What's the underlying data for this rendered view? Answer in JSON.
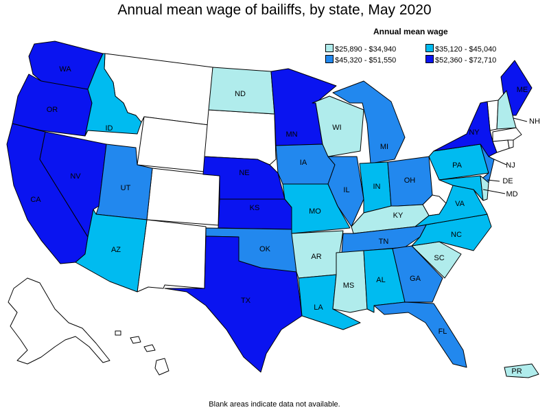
{
  "title": "Annual mean wage of bailiffs, by state, May 2020",
  "legend": {
    "title": "Annual mean wage",
    "items": [
      {
        "label": "$25,890 - $34,940",
        "color": "#b0ecec"
      },
      {
        "label": "$35,120 - $45,040",
        "color": "#00bbf0"
      },
      {
        "label": "$45,320 - $51,550",
        "color": "#2288ee"
      },
      {
        "label": "$52,360 - $72,710",
        "color": "#0a14f0"
      }
    ]
  },
  "footnote": "Blank areas indicate data not available.",
  "states": {
    "WA": {
      "label": "WA",
      "tier": 3
    },
    "OR": {
      "label": "OR",
      "tier": 3
    },
    "CA": {
      "label": "CA",
      "tier": 3
    },
    "NV": {
      "label": "NV",
      "tier": 3
    },
    "ID": {
      "label": "ID",
      "tier": 1
    },
    "UT": {
      "label": "UT",
      "tier": 2
    },
    "AZ": {
      "label": "AZ",
      "tier": 1
    },
    "ND": {
      "label": "ND",
      "tier": 0
    },
    "NE": {
      "label": "NE",
      "tier": 3
    },
    "KS": {
      "label": "KS",
      "tier": 3
    },
    "OK": {
      "label": "OK",
      "tier": 2
    },
    "TX": {
      "label": "TX",
      "tier": 3
    },
    "MN": {
      "label": "MN",
      "tier": 3
    },
    "IA": {
      "label": "IA",
      "tier": 2
    },
    "MO": {
      "label": "MO",
      "tier": 1
    },
    "AR": {
      "label": "AR",
      "tier": 0
    },
    "LA": {
      "label": "LA",
      "tier": 1
    },
    "WI": {
      "label": "WI",
      "tier": 0
    },
    "IL": {
      "label": "IL",
      "tier": 2
    },
    "MI": {
      "label": "MI",
      "tier": 2
    },
    "IN": {
      "label": "IN",
      "tier": 1
    },
    "OH": {
      "label": "OH",
      "tier": 2
    },
    "KY": {
      "label": "KY",
      "tier": 0
    },
    "TN": {
      "label": "TN",
      "tier": 2
    },
    "MS": {
      "label": "MS",
      "tier": 0
    },
    "AL": {
      "label": "AL",
      "tier": 1
    },
    "GA": {
      "label": "GA",
      "tier": 2
    },
    "FL": {
      "label": "FL",
      "tier": 2
    },
    "SC": {
      "label": "SC",
      "tier": 0
    },
    "NC": {
      "label": "NC",
      "tier": 1
    },
    "VA": {
      "label": "VA",
      "tier": 1
    },
    "PA": {
      "label": "PA",
      "tier": 1
    },
    "NY": {
      "label": "NY",
      "tier": 3
    },
    "ME": {
      "label": "ME",
      "tier": 3
    },
    "NH": {
      "label": "NH",
      "tier": 0
    },
    "NJ": {
      "label": "NJ",
      "tier": 2
    },
    "DE": {
      "label": "DE",
      "tier": 0
    },
    "MD": {
      "label": "MD",
      "tier": 1
    },
    "PR": {
      "label": "PR",
      "tier": 0
    }
  },
  "no_data_color": "#ffffff"
}
